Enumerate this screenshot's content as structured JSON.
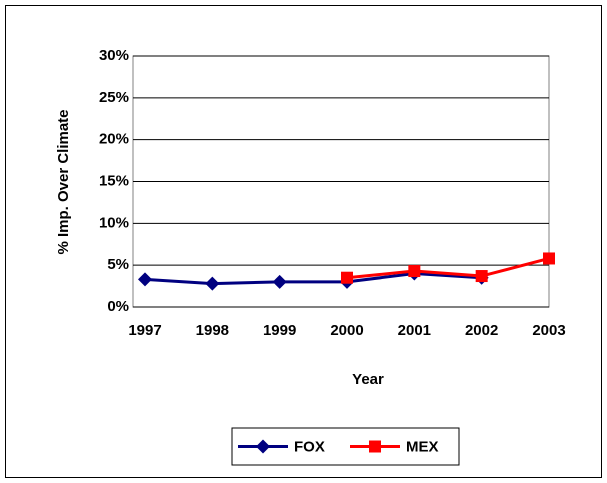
{
  "chart_data": {
    "type": "line",
    "x_label": "Year",
    "y_label": "% Imp. Over Climate",
    "categories": [
      "1997",
      "1998",
      "1999",
      "2000",
      "2001",
      "2002",
      "2003"
    ],
    "series": [
      {
        "name": "FOX",
        "color": "#000080",
        "marker": "diamond",
        "values": [
          3.3,
          2.8,
          3.0,
          3.0,
          4.0,
          3.5,
          null
        ]
      },
      {
        "name": "MEX",
        "color": "#ff0000",
        "marker": "square",
        "values": [
          null,
          null,
          null,
          3.5,
          4.3,
          3.7,
          5.8
        ]
      }
    ],
    "ylim": [
      0,
      30
    ],
    "yticks": [
      {
        "value": 0,
        "label": "0%"
      },
      {
        "value": 5,
        "label": "5%"
      },
      {
        "value": 10,
        "label": "10%"
      },
      {
        "value": 15,
        "label": "15%"
      },
      {
        "value": 20,
        "label": "20%"
      },
      {
        "value": 25,
        "label": "25%"
      },
      {
        "value": 30,
        "label": "30%"
      }
    ],
    "grid": true,
    "legend": "bottom"
  }
}
